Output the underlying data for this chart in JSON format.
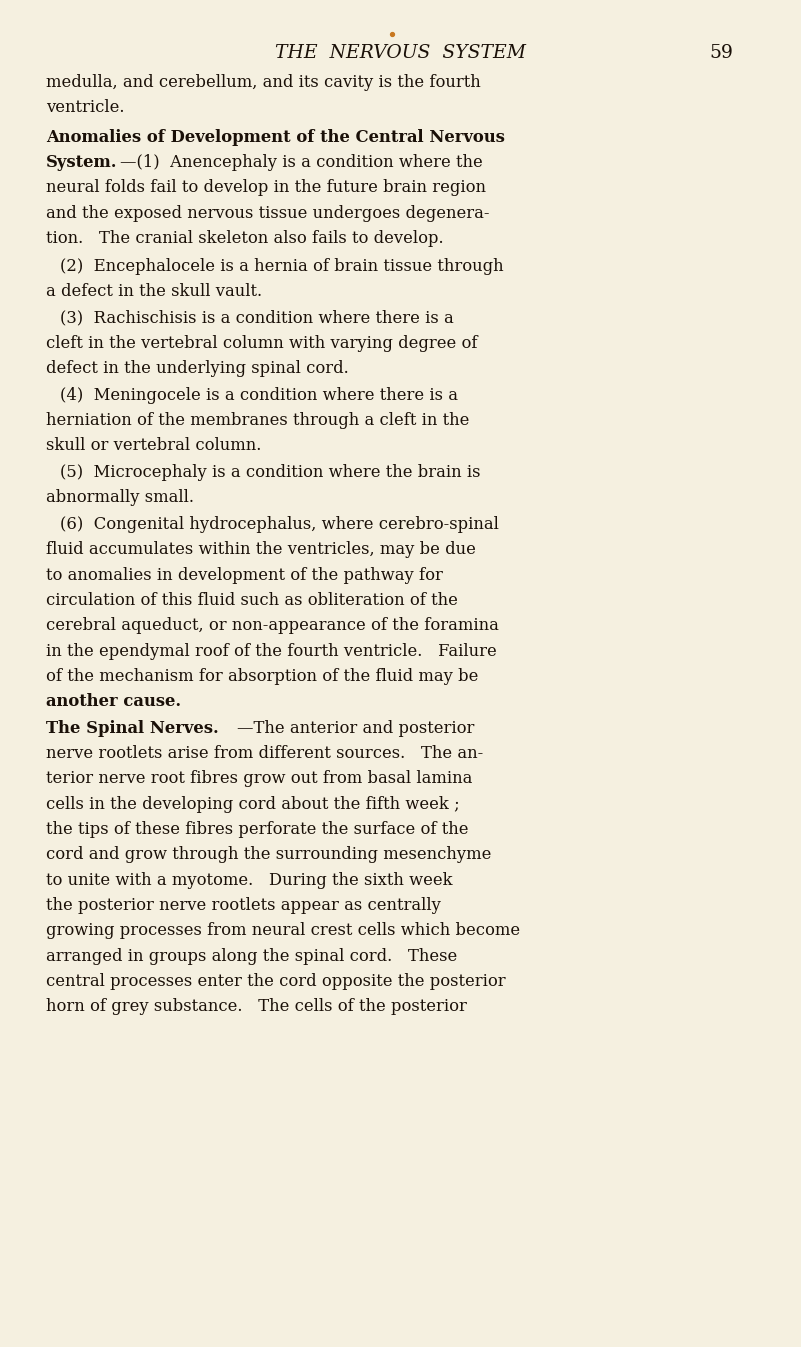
{
  "bg_color": "#f5f0e0",
  "text_color": "#1a1008",
  "header_italic": "THE  NERVOUS  SYSTEM",
  "page_number": "59",
  "font_size_header": 13.5,
  "font_size_body": 11.8,
  "lh": 0.0188,
  "lm": 0.057,
  "ind": 0.075,
  "dot_color": "#c87820",
  "lines_p1": [
    "medulla, and cerebellum, and its cavity is the fourth",
    "ventricle."
  ],
  "lines_bold1_line1": "Anomalies of Development of the Central Nervous",
  "lines_bold1_line2": "System.",
  "lines_rest1": [
    "—(1)  Anencephaly is a condition where the",
    "neural folds fail to develop in the future brain region",
    "and the exposed nervous tissue undergoes degenera-",
    "tion.   The cranial skeleton also fails to develop."
  ],
  "lines_p2": [
    "(2)  Encephalocele is a hernia of brain tissue through",
    "a defect in the skull vault."
  ],
  "lines_p3": [
    "(3)  Rachischisis is a condition where there is a",
    "cleft in the vertebral column with varying degree of",
    "defect in the underlying spinal cord."
  ],
  "lines_p4": [
    "(4)  Meningocele is a condition where there is a",
    "herniation of the membranes through a cleft in the",
    "skull or vertebral column."
  ],
  "lines_p5": [
    "(5)  Microcephaly is a condition where the brain is",
    "abnormally small."
  ],
  "lines_p6": [
    "(6)  Congenital hydrocephalus, where cerebro-spinal",
    "fluid accumulates within the ventricles, may be due",
    "to anomalies in development of the pathway for",
    "circulation of this fluid such as obliteration of the",
    "cerebral aqueduct, or non-appearance of the foramina",
    "in the ependymal roof of the fourth ventricle.   Failure",
    "of the mechanism for absorption of the fluid may be"
  ],
  "line_another_cause": "another cause.",
  "bold_spinal": "The Spinal Nerves.",
  "rest_spinal_line1": "—The anterior and posterior",
  "lines_spinal": [
    "nerve rootlets arise from different sources.   The an-",
    "terior nerve root fibres grow out from basal lamina",
    "cells in the developing cord about the fifth week ;",
    "the tips of these fibres perforate the surface of the",
    "cord and grow through the surrounding mesenchyme",
    "to unite with a myotome.   During the sixth week",
    "the posterior nerve rootlets appear as centrally",
    "growing processes from neural crest cells which become",
    "arranged in groups along the spinal cord.   These",
    "central processes enter the cord opposite the posterior",
    "horn of grey substance.   The cells of the posterior"
  ]
}
